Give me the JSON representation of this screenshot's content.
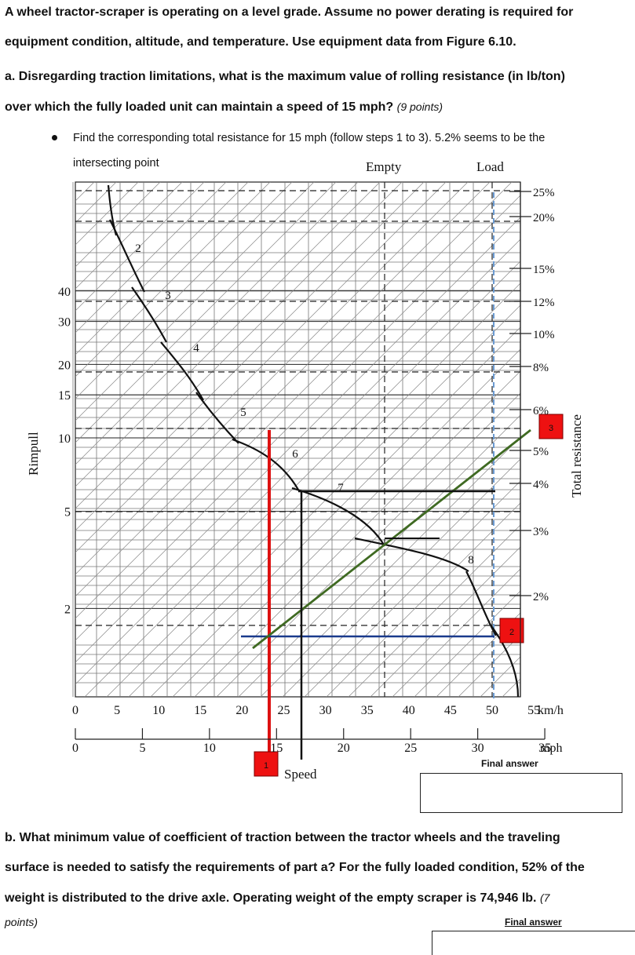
{
  "intro": {
    "line1": "A wheel tractor-scraper is operating on a level grade. Assume no power derating is required for",
    "line2": "equipment condition, altitude, and temperature. Use equipment data from Figure 6.10."
  },
  "question_a": {
    "line1": "a. Disregarding traction limitations, what is the maximum value of rolling resistance (in lb/ton)",
    "line2": "over which the fully loaded unit can maintain a speed of 15 mph?",
    "points": "(9 points)"
  },
  "bullet": {
    "line1": "Find the corresponding total resistance for 15 mph (follow steps 1 to 3). 5.2% seems to be the",
    "line2": "intersecting point"
  },
  "chart": {
    "empty_label": "Empty",
    "load_label": "Load",
    "y_label": "Rimpull",
    "right_label": "Total resistance",
    "x_title": "Speed",
    "kmh_unit": "km/h",
    "mph_unit": "mph",
    "y_ticks": [
      "40",
      "30",
      "20",
      "15",
      "10",
      "5",
      "2"
    ],
    "kmh_ticks": [
      "0",
      "5",
      "10",
      "15",
      "20",
      "25",
      "30",
      "35",
      "40",
      "45",
      "50",
      "55"
    ],
    "mph_ticks": [
      "0",
      "5",
      "10",
      "15",
      "20",
      "25",
      "30",
      "35"
    ],
    "resistance_ticks": [
      "25%",
      "20%",
      "15%",
      "12%",
      "10%",
      "8%",
      "6%",
      "5%",
      "4%",
      "3%",
      "2%"
    ],
    "gear_labels": [
      "2",
      "3",
      "4",
      "5",
      "6",
      "7",
      "8"
    ],
    "step_markers": [
      "1",
      "2",
      "3"
    ],
    "colors": {
      "red_line": "#dd1111",
      "blue_line": "#1a3a8c",
      "green_line": "#3f6a22",
      "marker": "#ee1111",
      "load_line": "#6b9bd2"
    },
    "final_answer_label": "Final answer"
  },
  "question_b": {
    "line1": "b. What minimum value of coefficient of traction between the tractor wheels and the traveling",
    "line2": "surface is needed to satisfy the requirements of part a? For the fully loaded condition, 52% of the",
    "line3": "weight is distributed to the drive axle. Operating weight of the empty scraper is 74,946 lb.",
    "points_line3": "(7",
    "points_line4": "points)",
    "final_answer_label": "Final answer"
  }
}
